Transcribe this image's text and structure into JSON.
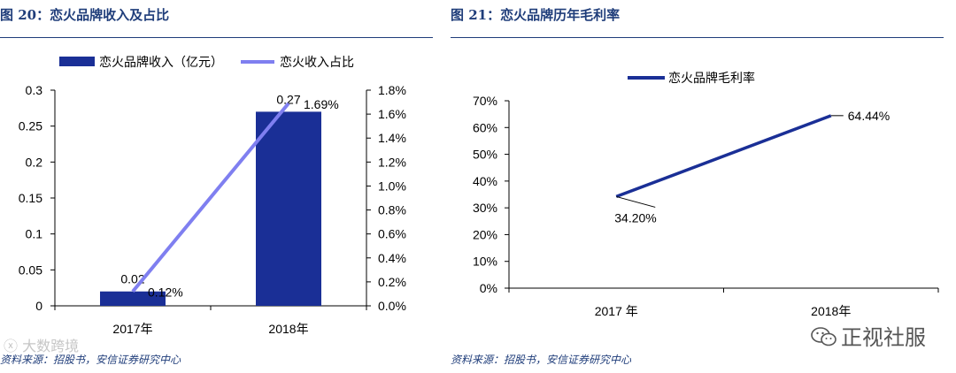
{
  "left": {
    "figure_title": "图 20：恋火品牌收入及占比",
    "source": "资料来源：招股书，安信证券研究中心",
    "watermark": "大数跨境",
    "chart_data": {
      "type": "bar",
      "categories": [
        "2017年",
        "2018年"
      ],
      "series": [
        {
          "name": "恋火品牌收入（亿元）",
          "type": "bar",
          "axis": "left",
          "values": [
            0.02,
            0.27
          ],
          "labels": [
            "0.02",
            "0.27"
          ],
          "color": "#1a2f96"
        },
        {
          "name": "恋火收入占比",
          "type": "line",
          "axis": "right",
          "values": [
            0.12,
            1.69
          ],
          "labels": [
            "0.12%",
            "1.69%"
          ],
          "color": "#7f7ff0"
        }
      ],
      "y_left": {
        "min": 0,
        "max": 0.3,
        "ticks": [
          0,
          0.05,
          0.1,
          0.15,
          0.2,
          0.25,
          0.3
        ],
        "tick_labels": [
          "0",
          "0.05",
          "0.1",
          "0.15",
          "0.2",
          "0.25",
          "0.3"
        ]
      },
      "y_right": {
        "min": 0,
        "max": 1.8,
        "ticks": [
          0,
          0.2,
          0.4,
          0.6,
          0.8,
          1.0,
          1.2,
          1.4,
          1.6,
          1.8
        ],
        "tick_labels": [
          "0.0%",
          "0.2%",
          "0.4%",
          "0.6%",
          "0.8%",
          "1.0%",
          "1.2%",
          "1.4%",
          "1.6%",
          "1.8%"
        ]
      },
      "legend": "top",
      "grid": false
    }
  },
  "right": {
    "figure_title": "图 21：恋火品牌历年毛利率",
    "source": "资料来源：招股书，安信证券研究中心",
    "watermark": "正视社服",
    "chart_data": {
      "type": "line",
      "categories": [
        "2017 年",
        "2018年"
      ],
      "series": [
        {
          "name": "恋火品牌毛利率",
          "values": [
            34.2,
            64.44
          ],
          "labels": [
            "34.20%",
            "64.44%"
          ],
          "color": "#1a2f96"
        }
      ],
      "y": {
        "min": 0,
        "max": 70,
        "ticks": [
          0,
          10,
          20,
          30,
          40,
          50,
          60,
          70
        ],
        "tick_labels": [
          "0%",
          "10%",
          "20%",
          "30%",
          "40%",
          "50%",
          "60%",
          "70%"
        ]
      },
      "legend": "top",
      "grid": false
    }
  }
}
